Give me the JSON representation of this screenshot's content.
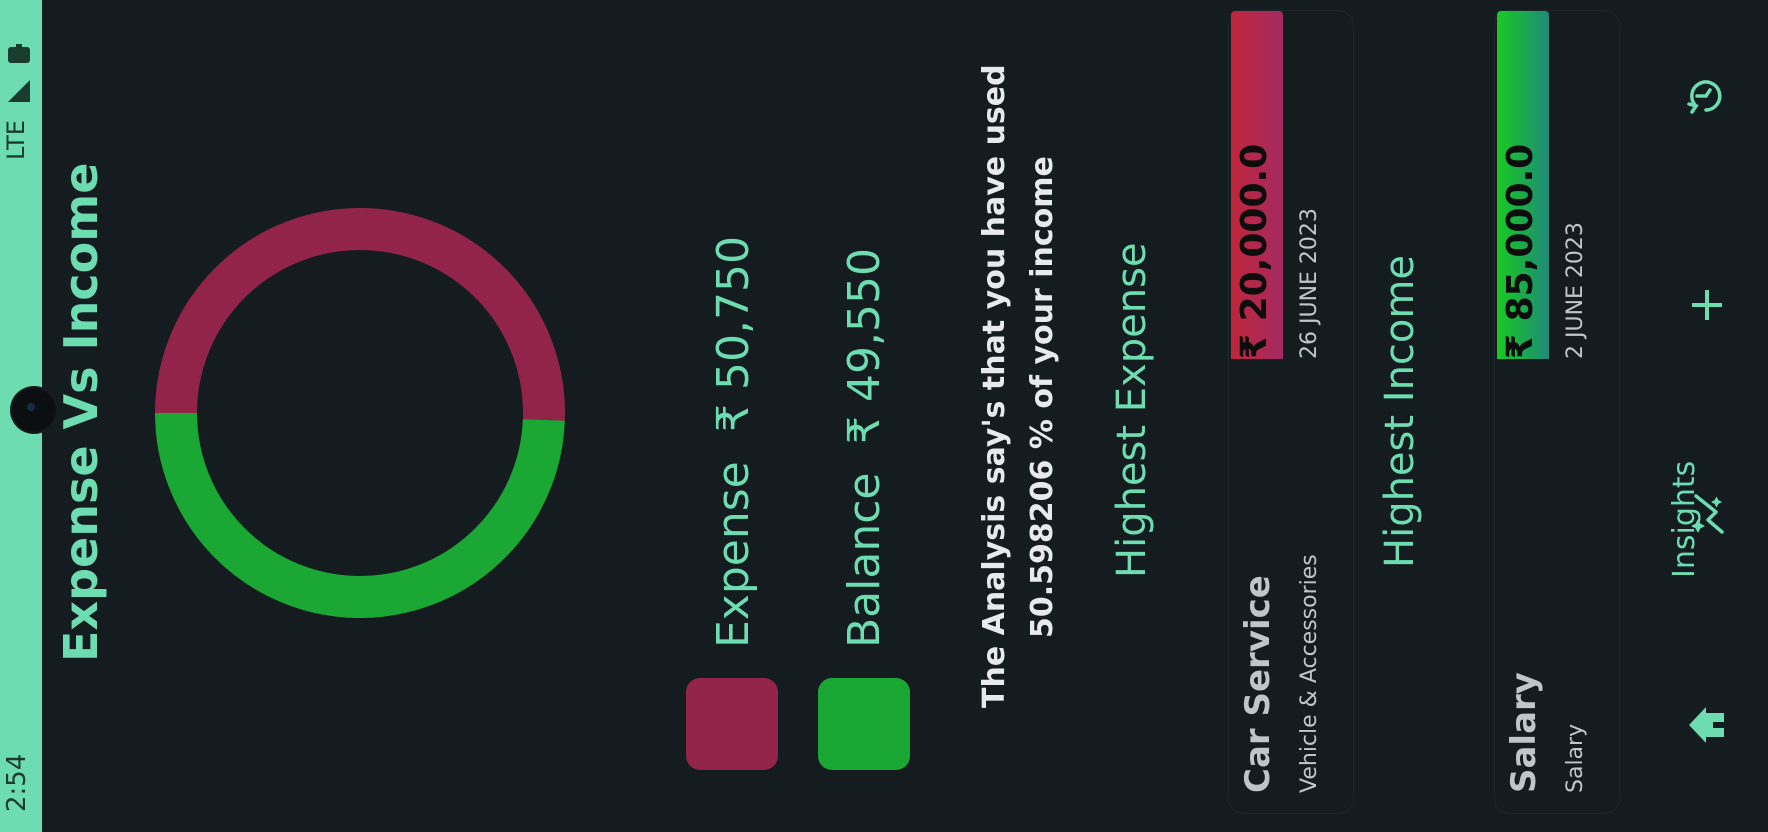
{
  "status_bar": {
    "time": "2:54",
    "network": "LTE"
  },
  "page": {
    "title": "Expense Vs Income"
  },
  "chart_data": {
    "type": "pie",
    "series": [
      {
        "name": "Expense",
        "value": 50750,
        "color": "#932449"
      },
      {
        "name": "Balance",
        "value": 49550,
        "color": "#1aa734"
      }
    ]
  },
  "legend": {
    "expense_label": "Expense",
    "expense_value": "₹ 50,750",
    "balance_label": "Balance",
    "balance_value": "₹ 49,550"
  },
  "analysis": {
    "line1": "The Analysis say's that you have used",
    "line2": "50.598206 % of your income"
  },
  "highest_expense": {
    "heading": "Highest Expense",
    "title": "Car Service",
    "category": "Vehicle & Accessories",
    "amount": "₹ 20,000.0",
    "date": "26 JUNE 2023"
  },
  "highest_income": {
    "heading": "Highest Income",
    "title": "Salary",
    "category": "Salary",
    "amount": "₹ 85,000.0",
    "date": "2 JUNE 2023"
  },
  "nav": {
    "insights_label": "Insights",
    "icons": [
      "home-icon",
      "insights-icon",
      "add-icon",
      "history-icon"
    ]
  },
  "colors": {
    "accent": "#6ddcb1",
    "expense": "#932449",
    "income": "#1aa734",
    "background": "#141c20"
  }
}
